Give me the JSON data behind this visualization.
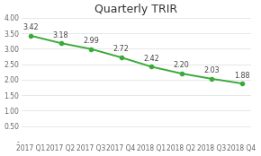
{
  "title": "Quarterly TRIR",
  "categories": [
    "2017 Q1",
    "2017 Q2",
    "2017 Q3",
    "2017 Q4",
    "2018 Q1",
    "2018 Q2",
    "2018 Q3",
    "2018 Q4"
  ],
  "values": [
    3.42,
    3.18,
    2.99,
    2.72,
    2.42,
    2.2,
    2.03,
    1.88
  ],
  "line_color": "#3aaa3a",
  "marker_color": "#3aaa3a",
  "ylim": [
    0,
    4.0
  ],
  "yticks": [
    0.0,
    0.5,
    1.0,
    1.5,
    2.0,
    2.5,
    3.0,
    3.5,
    4.0
  ],
  "ytick_labels": [
    "-",
    "0.50",
    "1.00",
    "1.50",
    "2.00",
    "2.50",
    "3.00",
    "3.50",
    "4.00"
  ],
  "background_color": "#ffffff",
  "title_fontsize": 9,
  "label_fontsize": 5.5,
  "annotation_fontsize": 5.8
}
